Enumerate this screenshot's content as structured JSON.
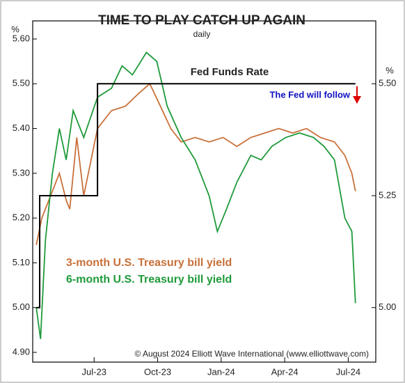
{
  "chart_data": {
    "type": "line",
    "title": "TIME TO PLAY CATCH UP AGAIN",
    "subtitle": "daily",
    "y_label": "%",
    "y2_label": "%",
    "annotations": [
      "Fed Funds Rate",
      "The Fed will follow"
    ],
    "source": "© August 2024 Elliott Wave International (www.elliottwave.com)",
    "xlim": [
      3.1,
      19.3
    ],
    "xticks": [
      {
        "value": 6,
        "label": "Jul-23"
      },
      {
        "value": 9,
        "label": "Oct-23"
      },
      {
        "value": 12,
        "label": "Jan-24"
      },
      {
        "value": 15,
        "label": "Apr-24"
      },
      {
        "value": 18,
        "label": "Jul-24"
      }
    ],
    "ylim": [
      4.9,
      5.6
    ],
    "yticks": [
      {
        "value": 4.9,
        "label": "4.90"
      },
      {
        "value": 5.0,
        "label": "5.00"
      },
      {
        "value": 5.1,
        "label": "5.10"
      },
      {
        "value": 5.2,
        "label": "5.20"
      },
      {
        "value": 5.3,
        "label": "5.30"
      },
      {
        "value": 5.4,
        "label": "5.40"
      },
      {
        "value": 5.5,
        "label": "5.50"
      },
      {
        "value": 5.6,
        "label": "5.60"
      }
    ],
    "y2lim": [
      4.9,
      5.6
    ],
    "y2ticks": [
      {
        "value": 5.0,
        "label": "5.00"
      },
      {
        "value": 5.25,
        "label": "5.25"
      },
      {
        "value": 5.5,
        "label": "5.50"
      }
    ],
    "series": [
      {
        "name": "3-month U.S. Treasury bill yield",
        "color": "#c8703a",
        "x": [
          3.27,
          3.53,
          4.03,
          4.36,
          4.68,
          4.85,
          5.18,
          5.51,
          6.16,
          6.82,
          7.48,
          8.14,
          8.63,
          9.13,
          9.62,
          10.11,
          10.77,
          11.43,
          12.09,
          12.74,
          13.4,
          14.06,
          14.72,
          15.38,
          16.03,
          16.69,
          17.35,
          17.84,
          18.17,
          18.34
        ],
        "values": [
          5.14,
          5.2,
          5.26,
          5.3,
          5.24,
          5.22,
          5.38,
          5.25,
          5.4,
          5.44,
          5.45,
          5.48,
          5.5,
          5.45,
          5.4,
          5.37,
          5.38,
          5.37,
          5.38,
          5.36,
          5.38,
          5.39,
          5.4,
          5.39,
          5.4,
          5.38,
          5.37,
          5.34,
          5.3,
          5.26
        ]
      },
      {
        "name": "6-month U.S. Treasury bill yield",
        "color": "#1e9a3a",
        "x": [
          3.27,
          3.47,
          3.7,
          4.03,
          4.36,
          4.68,
          5.01,
          5.51,
          6.16,
          6.82,
          7.32,
          7.81,
          8.47,
          8.96,
          9.45,
          10.11,
          10.77,
          11.43,
          11.82,
          12.25,
          12.74,
          13.4,
          13.89,
          14.39,
          15.05,
          15.7,
          16.36,
          16.86,
          17.35,
          17.84,
          18.17,
          18.34
        ],
        "values": [
          5.0,
          4.93,
          5.15,
          5.3,
          5.4,
          5.33,
          5.44,
          5.38,
          5.47,
          5.49,
          5.54,
          5.52,
          5.57,
          5.55,
          5.45,
          5.38,
          5.33,
          5.25,
          5.17,
          5.22,
          5.28,
          5.34,
          5.33,
          5.36,
          5.38,
          5.39,
          5.38,
          5.36,
          5.33,
          5.2,
          5.17,
          5.01
        ]
      },
      {
        "name": "Fed Funds Rate",
        "color": "#000000",
        "axis": "y2",
        "x": [
          3.27,
          3.43,
          3.43,
          6.16,
          6.16,
          18.34
        ],
        "values": [
          5.0,
          5.0,
          5.25,
          5.25,
          5.5,
          5.5
        ]
      }
    ]
  }
}
